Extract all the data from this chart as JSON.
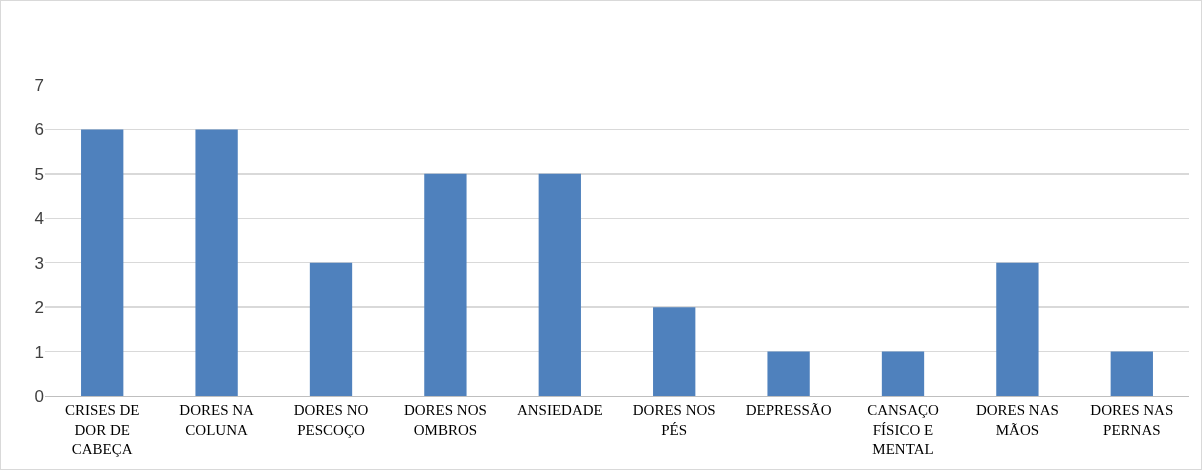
{
  "chart_data": {
    "type": "bar",
    "categories": [
      "CRISES DE DOR DE CABEÇA",
      "DORES NA COLUNA",
      "DORES NO PESCOÇO",
      "DORES NOS OMBROS",
      "ANSIEDADE",
      "DORES NOS PÉS",
      "DEPRESSÃO",
      "CANSAÇO FÍSICO E MENTAL",
      "DORES NAS MÃOS",
      "DORES NAS PERNAS"
    ],
    "values": [
      6,
      6,
      3,
      5,
      5,
      2,
      1,
      1,
      3,
      1
    ],
    "color": "#4f81bd",
    "ylim": [
      0,
      7
    ],
    "yticks": [
      0,
      1,
      2,
      3,
      4,
      5,
      6,
      7
    ],
    "grid": "y"
  }
}
